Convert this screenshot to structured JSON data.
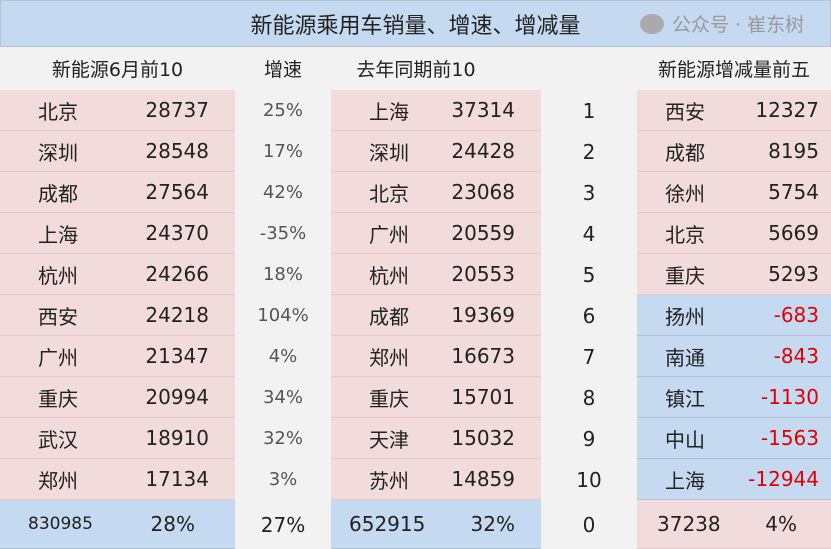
{
  "title": "新能源乘用车销量、增速、增减量",
  "headers": {
    "top10": "新能源6月前10",
    "growth": "增速",
    "last_year": "去年同期前10",
    "change": "新能源增减量前五"
  },
  "rows": [
    {
      "city": "北京",
      "value": "28737",
      "growth": "25%",
      "ly_city": "上海",
      "ly_value": "37314",
      "rank": "1",
      "ch_city": "西安",
      "ch_value": "12327"
    },
    {
      "city": "深圳",
      "value": "28548",
      "growth": "17%",
      "ly_city": "深圳",
      "ly_value": "24428",
      "rank": "2",
      "ch_city": "成都",
      "ch_value": "8195"
    },
    {
      "city": "成都",
      "value": "27564",
      "growth": "42%",
      "ly_city": "北京",
      "ly_value": "23068",
      "rank": "3",
      "ch_city": "徐州",
      "ch_value": "5754"
    },
    {
      "city": "上海",
      "value": "24370",
      "growth": "-35%",
      "ly_city": "广州",
      "ly_value": "20559",
      "rank": "4",
      "ch_city": "北京",
      "ch_value": "5669"
    },
    {
      "city": "杭州",
      "value": "24266",
      "growth": "18%",
      "ly_city": "杭州",
      "ly_value": "20553",
      "rank": "5",
      "ch_city": "重庆",
      "ch_value": "5293"
    },
    {
      "city": "西安",
      "value": "24218",
      "growth": "104%",
      "ly_city": "成都",
      "ly_value": "19369",
      "rank": "6",
      "ch_city": "扬州",
      "ch_value": "-683"
    },
    {
      "city": "广州",
      "value": "21347",
      "growth": "4%",
      "ly_city": "郑州",
      "ly_value": "16673",
      "rank": "7",
      "ch_city": "南通",
      "ch_value": "-843"
    },
    {
      "city": "重庆",
      "value": "20994",
      "growth": "34%",
      "ly_city": "重庆",
      "ly_value": "15701",
      "rank": "8",
      "ch_city": "镇江",
      "ch_value": "-1130"
    },
    {
      "city": "武汉",
      "value": "18910",
      "growth": "32%",
      "ly_city": "天津",
      "ly_value": "15032",
      "rank": "9",
      "ch_city": "中山",
      "ch_value": "-1563"
    },
    {
      "city": "郑州",
      "value": "17134",
      "growth": "3%",
      "ly_city": "苏州",
      "ly_value": "14859",
      "rank": "10",
      "ch_city": "上海",
      "ch_value": "-12944"
    }
  ],
  "total": {
    "value": "830985",
    "share": "28%",
    "growth": "27%",
    "ly_value": "652915",
    "ly_share": "32%",
    "rank": "0",
    "ch_value": "37238",
    "ch_share": "4%"
  },
  "watermark": "公众号 · 崔东树",
  "colors": {
    "pink": "#f2dcdb",
    "blue": "#c5d9f1",
    "negative": "#e00000"
  }
}
